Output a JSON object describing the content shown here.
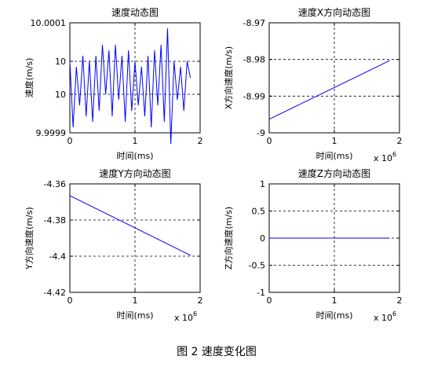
{
  "caption": "图 2  速度变化图",
  "chart_data": [
    {
      "type": "line",
      "title": "速度动态图",
      "xlabel": "时间(ms)",
      "ylabel": "速度(m/s)",
      "x_exponent_label": "",
      "xlim": [
        0,
        2000000
      ],
      "ylim": [
        9.9999,
        10.0001
      ],
      "xticks": [
        0,
        1000000,
        2000000
      ],
      "xtick_labels": [
        "0",
        "1",
        "2"
      ],
      "yticks": [
        9.9999,
        9.99997,
        10.00003,
        10.0001
      ],
      "ytick_labels": [
        "9.9999",
        "10",
        "10",
        "10.0001"
      ],
      "grid": true,
      "series": [
        {
          "color": "#0000ff",
          "x": [
            0,
            50000,
            100000,
            150000,
            200000,
            250000,
            300000,
            350000,
            400000,
            450000,
            500000,
            550000,
            600000,
            650000,
            700000,
            750000,
            800000,
            850000,
            900000,
            950000,
            1000000,
            1050000,
            1100000,
            1150000,
            1200000,
            1250000,
            1300000,
            1350000,
            1400000,
            1450000,
            1500000,
            1550000,
            1600000,
            1650000,
            1700000,
            1750000,
            1800000,
            1850000
          ],
          "y": [
            10.00003,
            9.99991,
            10.00002,
            9.99995,
            10.00004,
            9.99993,
            10.00003,
            9.99992,
            10.00004,
            9.99994,
            10.00006,
            9.99997,
            10.00005,
            9.99993,
            10.00006,
            9.99996,
            10.00004,
            9.99992,
            10.00005,
            9.99994,
            10.00003,
            9.99995,
            10.00002,
            9.99993,
            10.00004,
            9.99991,
            10.00005,
            9.99995,
            10.00006,
            9.99992,
            10.00009,
            9.99988,
            10.00003,
            9.99996,
            10.00002,
            9.99994,
            10.00003,
            10.0
          ]
        }
      ]
    },
    {
      "type": "line",
      "title": "速度X方向动态图",
      "xlabel": "时间(ms)",
      "ylabel": "X方向速度(m/s)",
      "x_exponent_label": "x 10^6",
      "xlim": [
        0,
        2000000
      ],
      "ylim": [
        -9.0,
        -8.97
      ],
      "xticks": [
        0,
        1000000,
        2000000
      ],
      "xtick_labels": [
        "0",
        "1",
        "2"
      ],
      "yticks": [
        -9.0,
        -8.99,
        -8.98,
        -8.97
      ],
      "ytick_labels": [
        "-9",
        "-8.99",
        "-8.98",
        "-8.97"
      ],
      "grid": true,
      "series": [
        {
          "color": "#0000ff",
          "x": [
            0,
            1850000
          ],
          "y": [
            -8.9963,
            -8.9803
          ]
        }
      ]
    },
    {
      "type": "line",
      "title": "速度Y方向动态图",
      "xlabel": "时间(ms)",
      "ylabel": "Y方向速度(m/s)",
      "x_exponent_label": "x 10^6",
      "xlim": [
        0,
        2000000
      ],
      "ylim": [
        -4.42,
        -4.36
      ],
      "xticks": [
        0,
        1000000,
        2000000
      ],
      "xtick_labels": [
        "0",
        "1",
        "2"
      ],
      "yticks": [
        -4.42,
        -4.4,
        -4.38,
        -4.36
      ],
      "ytick_labels": [
        "-4.42",
        "-4.4",
        "-4.38",
        "-4.36"
      ],
      "grid": true,
      "series": [
        {
          "color": "#0000ff",
          "x": [
            0,
            1850000
          ],
          "y": [
            -4.3665,
            -4.3995
          ]
        }
      ]
    },
    {
      "type": "line",
      "title": "速度Z方向动态图",
      "xlabel": "时间(ms)",
      "ylabel": "Z方向速度(m/s)",
      "x_exponent_label": "x 10^6",
      "xlim": [
        0,
        2000000
      ],
      "ylim": [
        -1,
        1
      ],
      "xticks": [
        0,
        1000000,
        2000000
      ],
      "xtick_labels": [
        "0",
        "1",
        "2"
      ],
      "yticks": [
        -1,
        -0.5,
        0,
        0.5,
        1
      ],
      "ytick_labels": [
        "-1",
        "-0.5",
        "0",
        "0.5",
        "1"
      ],
      "grid": true,
      "series": [
        {
          "color": "#0000ff",
          "x": [
            0,
            1850000
          ],
          "y": [
            0,
            0
          ]
        }
      ]
    }
  ]
}
